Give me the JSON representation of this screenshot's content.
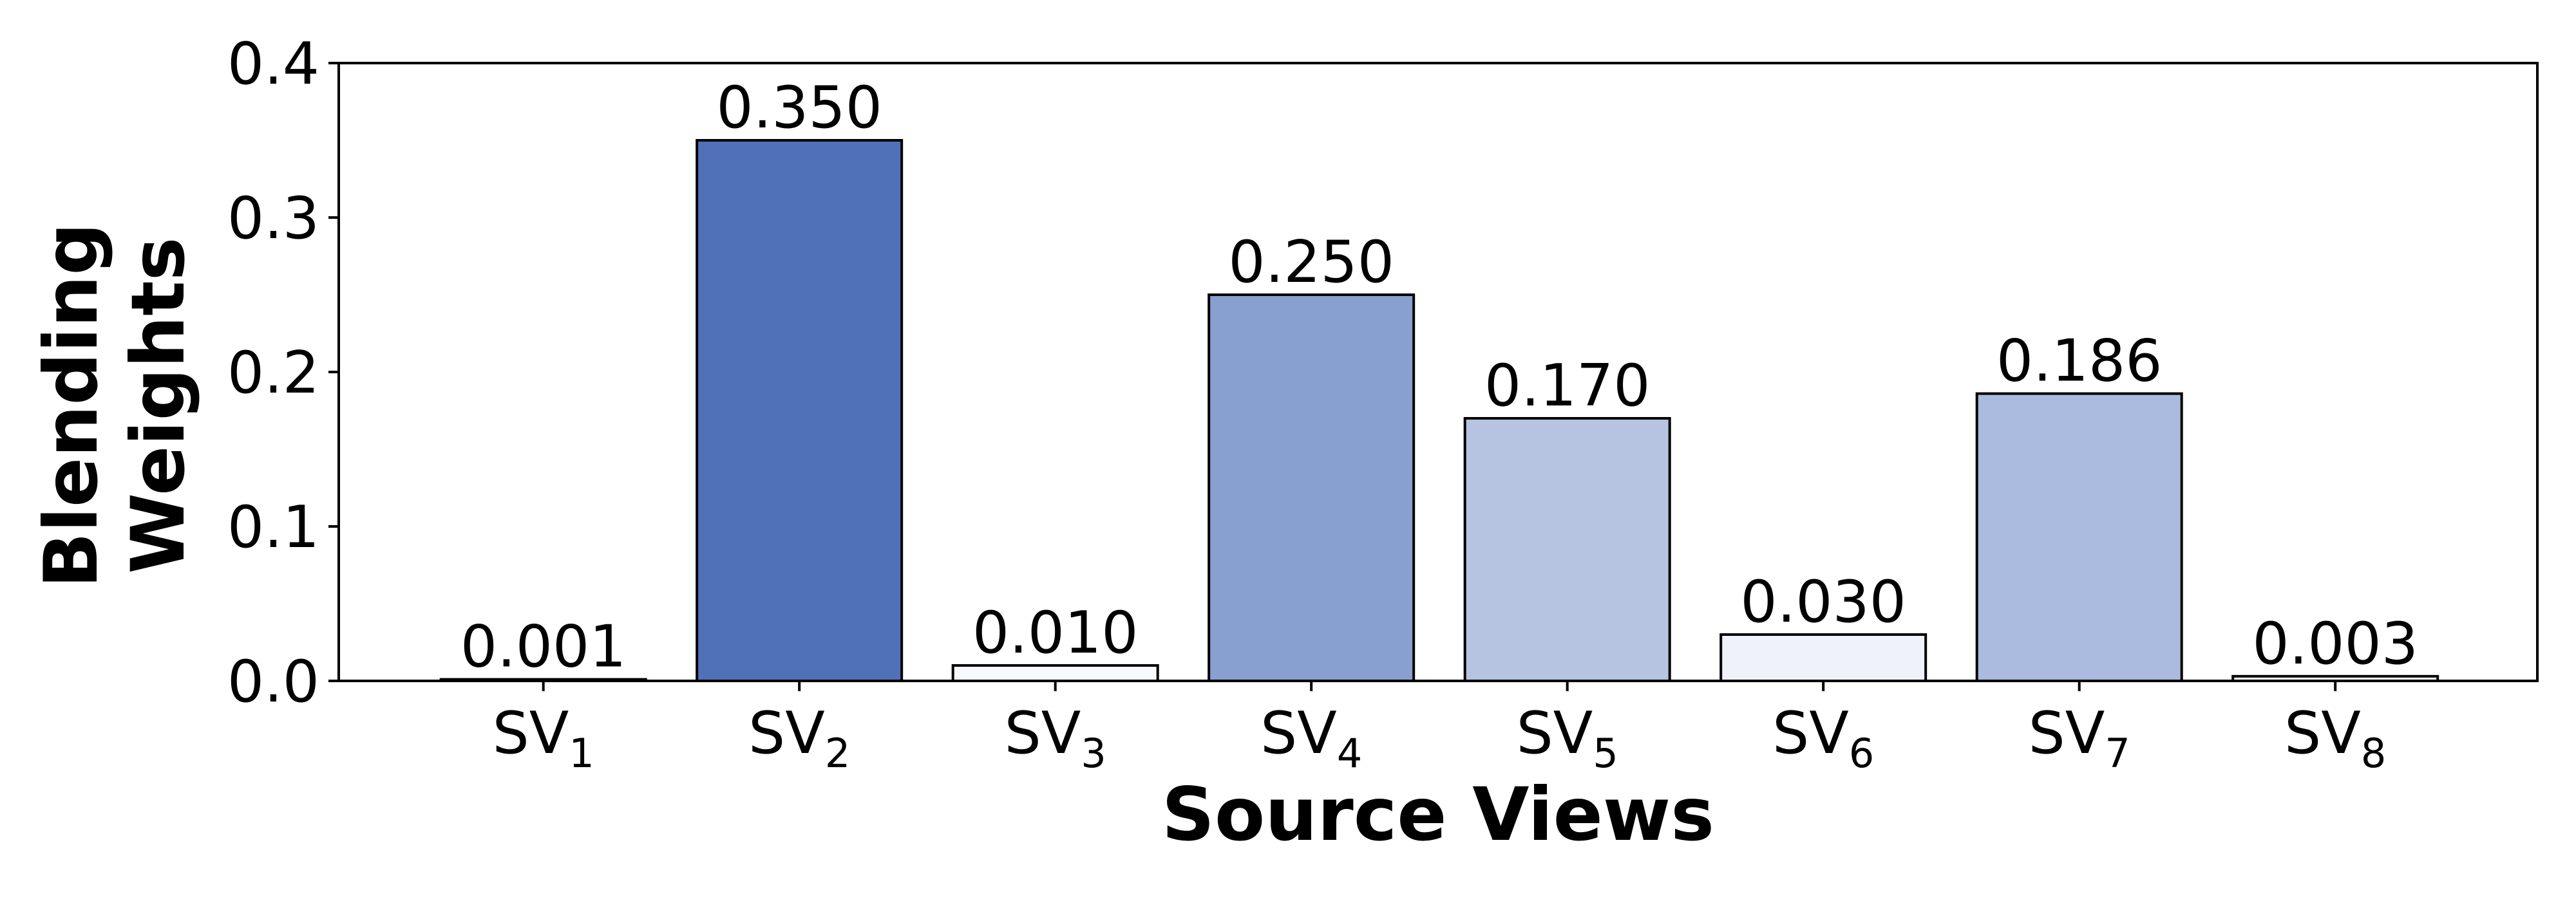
{
  "chart_data": {
    "type": "bar",
    "xlabel": "Source Views",
    "ylabel_lines": [
      "Blending",
      "Weights"
    ],
    "ylim": [
      0,
      0.4
    ],
    "yticks": [
      "0.0",
      "0.1",
      "0.2",
      "0.3",
      "0.4"
    ],
    "categories": [
      {
        "base": "SV",
        "sub": "1"
      },
      {
        "base": "SV",
        "sub": "2"
      },
      {
        "base": "SV",
        "sub": "3"
      },
      {
        "base": "SV",
        "sub": "4"
      },
      {
        "base": "SV",
        "sub": "5"
      },
      {
        "base": "SV",
        "sub": "6"
      },
      {
        "base": "SV",
        "sub": "7"
      },
      {
        "base": "SV",
        "sub": "8"
      }
    ],
    "values": [
      0.001,
      0.35,
      0.01,
      0.25,
      0.17,
      0.03,
      0.186,
      0.003
    ],
    "value_labels": [
      "0.001",
      "0.350",
      "0.010",
      "0.250",
      "0.170",
      "0.030",
      "0.186",
      "0.003"
    ],
    "bar_colors": [
      "#fbfbfe",
      "#5071b8",
      "#f8f9fc",
      "#88a0d0",
      "#b6c4e2",
      "#eff2f9",
      "#aabbdf",
      "#fbfbfe"
    ],
    "bar_edge_color": "#000000",
    "grid": false,
    "legend": "none"
  }
}
